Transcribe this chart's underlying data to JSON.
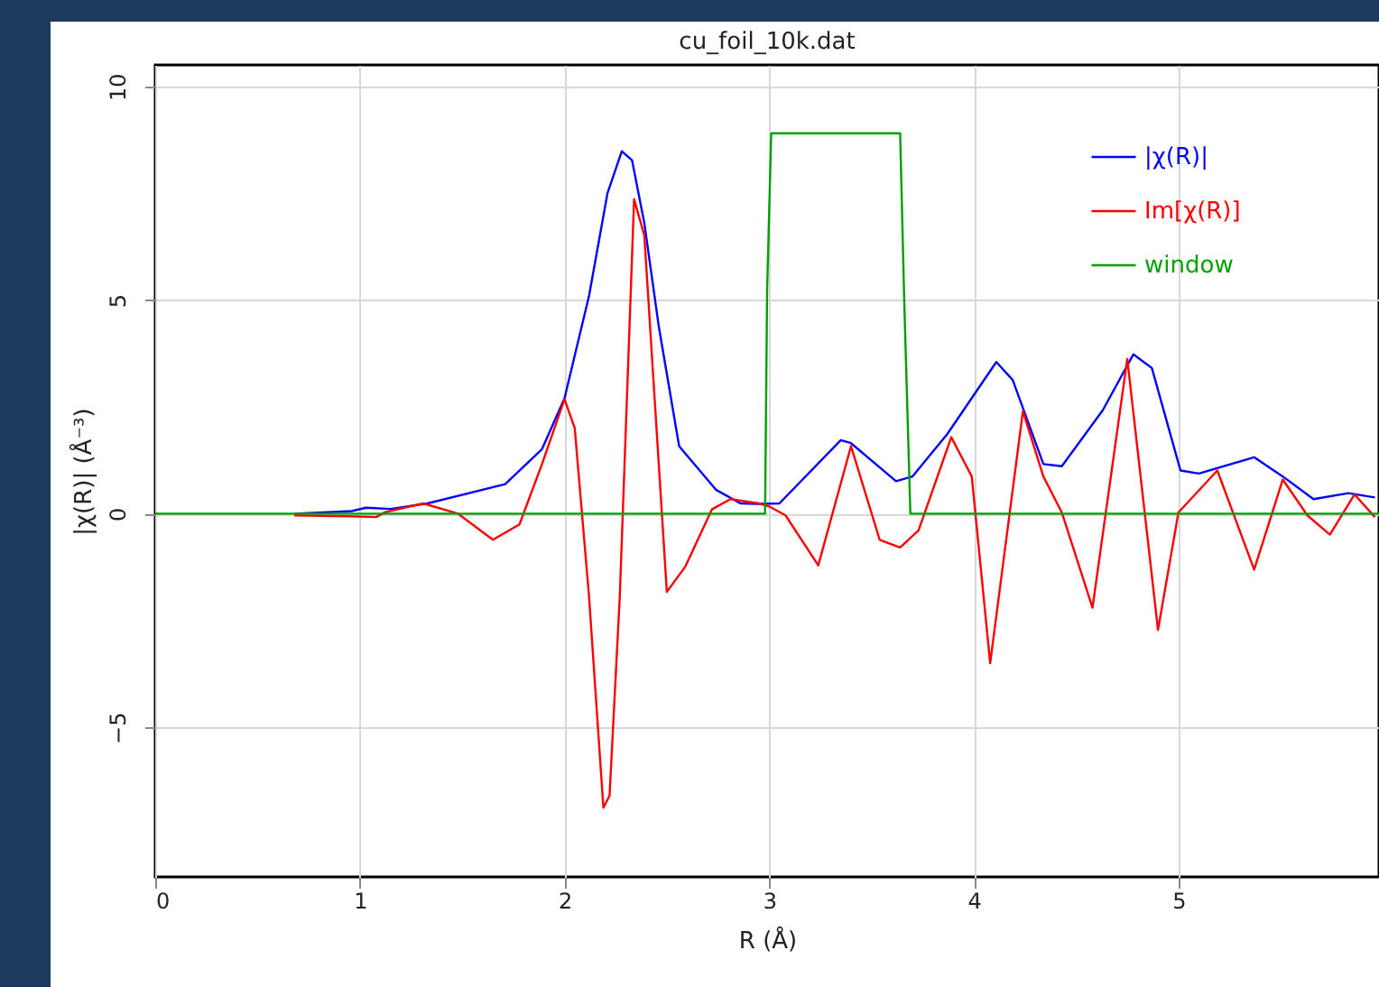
{
  "chart_data": {
    "type": "line",
    "title": "cu_foil_10k.dat",
    "xlabel": "R (Å)",
    "ylabel": "|χ(R)| (Å⁻³)",
    "xlim": [
      0,
      5.98
    ],
    "xticks": [
      0,
      1,
      2,
      3,
      4,
      5
    ],
    "ylim": [
      -8.5,
      10.5
    ],
    "yticks": [
      -5,
      0,
      5,
      10
    ],
    "grid": true,
    "legend": "top right",
    "marker": "none",
    "line_style": "solid",
    "series": [
      {
        "name": "|χ(R)|",
        "color": "#0000ff",
        "x": [
          0.68,
          0.96,
          1.03,
          1.15,
          1.33,
          1.71,
          1.89,
          2.0,
          2.12,
          2.21,
          2.28,
          2.33,
          2.39,
          2.46,
          2.56,
          2.74,
          2.86,
          2.95,
          3.05,
          3.35,
          3.4,
          3.62,
          3.7,
          3.87,
          4.11,
          4.19,
          4.34,
          4.43,
          4.63,
          4.78,
          4.87,
          5.01,
          5.1,
          5.37,
          5.51,
          5.66,
          5.83,
          5.96
        ],
        "values": [
          0.0,
          0.06,
          0.14,
          0.11,
          0.24,
          0.69,
          1.51,
          2.7,
          5.1,
          7.5,
          8.48,
          8.27,
          6.8,
          4.4,
          1.58,
          0.56,
          0.24,
          0.23,
          0.24,
          1.72,
          1.65,
          0.76,
          0.87,
          1.86,
          3.55,
          3.13,
          1.16,
          1.11,
          2.42,
          3.73,
          3.41,
          1.01,
          0.94,
          1.32,
          0.87,
          0.34,
          0.48,
          0.38
        ]
      },
      {
        "name": "Im[χ(R)]",
        "color": "#ff0000",
        "x": [
          0.68,
          0.95,
          1.08,
          1.12,
          1.31,
          1.48,
          1.65,
          1.78,
          1.89,
          2.0,
          2.05,
          2.12,
          2.19,
          2.22,
          2.27,
          2.34,
          2.39,
          2.5,
          2.59,
          2.72,
          2.81,
          2.95,
          3.0,
          3.08,
          3.24,
          3.4,
          3.54,
          3.64,
          3.73,
          3.89,
          3.99,
          4.08,
          4.24,
          4.34,
          4.43,
          4.58,
          4.75,
          4.9,
          5.0,
          5.19,
          5.37,
          5.51,
          5.63,
          5.74,
          5.86,
          5.96
        ],
        "values": [
          -0.04,
          -0.06,
          -0.08,
          0.03,
          0.24,
          0.0,
          -0.61,
          -0.25,
          1.16,
          2.68,
          2.0,
          -1.95,
          -6.88,
          -6.6,
          -1.95,
          7.36,
          6.51,
          -1.83,
          -1.24,
          0.1,
          0.34,
          0.24,
          0.17,
          -0.04,
          -1.21,
          1.58,
          -0.61,
          -0.79,
          -0.39,
          1.79,
          0.87,
          -3.5,
          2.4,
          0.87,
          0.03,
          -2.2,
          3.62,
          -2.72,
          0.03,
          1.01,
          -1.31,
          0.8,
          -0.04,
          -0.49,
          0.45,
          -0.08
        ]
      },
      {
        "name": "window",
        "color": "#00a000",
        "x": [
          0,
          2.98,
          2.99,
          3.01,
          3.64,
          3.66,
          3.69,
          5.98
        ],
        "values": [
          0,
          0,
          5.2,
          8.9,
          8.9,
          5.0,
          0,
          0
        ]
      }
    ]
  }
}
